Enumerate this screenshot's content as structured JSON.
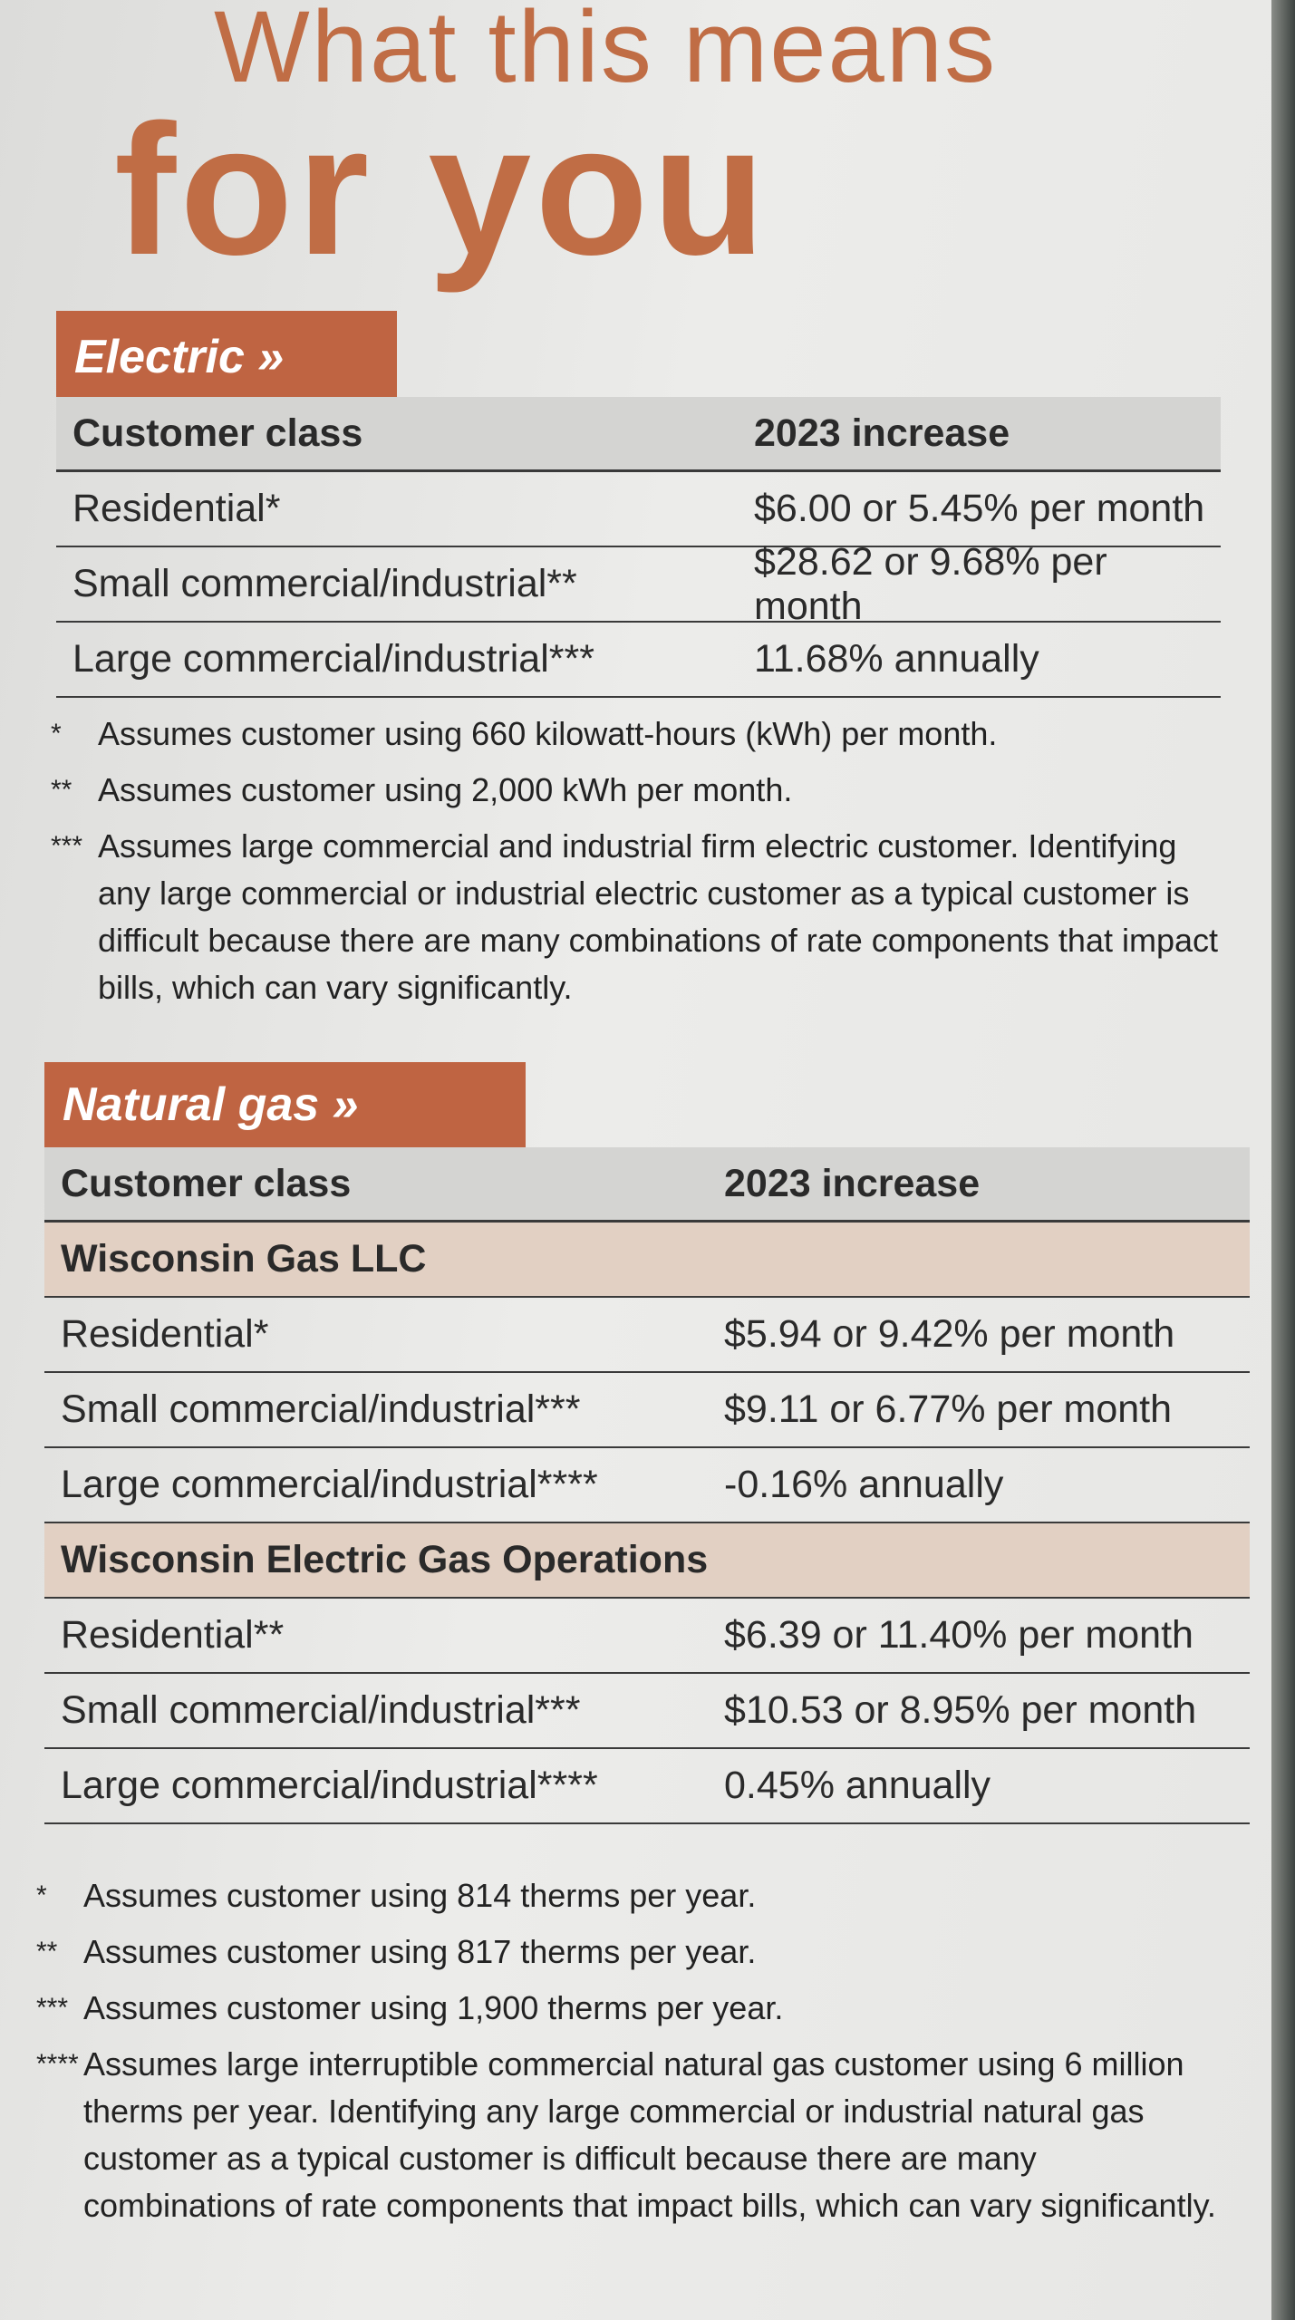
{
  "header": {
    "line1": "What this means",
    "line2": "for you"
  },
  "electric": {
    "title": "Electric »",
    "columns": [
      "Customer class",
      "2023 increase"
    ],
    "rows": [
      [
        "Residential*",
        "$6.00 or 5.45% per month"
      ],
      [
        "Small commercial/industrial**",
        "$28.62 or 9.68% per month"
      ],
      [
        "Large commercial/industrial***",
        "11.68% annually"
      ]
    ],
    "footnotes": [
      {
        "marker": "*",
        "text": "Assumes customer using 660 kilowatt-hours (kWh) per month."
      },
      {
        "marker": "**",
        "text": "Assumes customer using 2,000 kWh per month."
      },
      {
        "marker": "***",
        "text": "Assumes large commercial and industrial firm electric customer. Identifying any large commercial or industrial electric customer as a typical customer is difficult because there are many combinations of rate components that impact bills, which can vary significantly."
      }
    ]
  },
  "natural_gas": {
    "title": "Natural gas »",
    "columns": [
      "Customer class",
      "2023 increase"
    ],
    "groups": [
      {
        "name": "Wisconsin Gas LLC",
        "rows": [
          [
            "Residential*",
            "$5.94 or 9.42% per month"
          ],
          [
            "Small commercial/industrial***",
            "$9.11 or 6.77% per month"
          ],
          [
            "Large commercial/industrial****",
            "-0.16% annually"
          ]
        ]
      },
      {
        "name": "Wisconsin Electric Gas Operations",
        "rows": [
          [
            "Residential**",
            "$6.39 or 11.40% per month"
          ],
          [
            "Small commercial/industrial***",
            "$10.53 or 8.95% per month"
          ],
          [
            "Large commercial/industrial****",
            "0.45% annually"
          ]
        ]
      }
    ],
    "footnotes": [
      {
        "marker": "*",
        "text": "Assumes customer using 814 therms per year."
      },
      {
        "marker": "**",
        "text": "Assumes customer using 817 therms per year."
      },
      {
        "marker": "***",
        "text": "Assumes customer using 1,900 therms per year."
      },
      {
        "marker": "****",
        "text": "Assumes large interruptible commercial natural gas customer using 6 million therms per year. Identifying any large commercial or industrial natural gas customer as a typical customer is difficult because there are many combinations of rate components that impact bills, which can vary significantly."
      }
    ]
  }
}
